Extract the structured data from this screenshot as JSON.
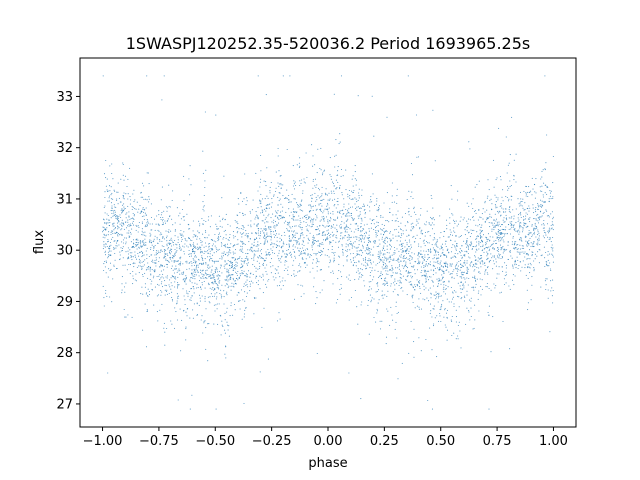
{
  "chart_data": {
    "type": "scatter",
    "title": "1SWASPJ120252.35-520036.2 Period 1693965.25s",
    "xlabel": "phase",
    "ylabel": "flux",
    "xlim": [
      -1.1,
      1.1
    ],
    "ylim": [
      26.55,
      33.75
    ],
    "grid": false,
    "point_color": "#1f77b4",
    "x_ticks": [
      -1.0,
      -0.75,
      -0.5,
      -0.25,
      0.0,
      0.25,
      0.5,
      0.75,
      1.0
    ],
    "x_tick_labels": [
      "−1.00",
      "−0.75",
      "−0.50",
      "−0.25",
      "0.00",
      "0.25",
      "0.50",
      "0.75",
      "1.00"
    ],
    "y_ticks": [
      27,
      28,
      29,
      30,
      31,
      32,
      33
    ],
    "y_tick_labels": [
      "27",
      "28",
      "29",
      "30",
      "31",
      "32",
      "33"
    ],
    "series": [
      {
        "x_range": [
          -1.0,
          1.0
        ],
        "mean_flux_profile": {
          "phase": [
            -1.0,
            -0.95,
            -0.85,
            -0.75,
            -0.6,
            -0.5,
            -0.4,
            -0.3,
            -0.2,
            -0.1,
            0.0,
            0.05,
            0.15,
            0.25,
            0.4,
            0.5,
            0.6,
            0.7,
            0.8,
            0.9,
            0.95,
            1.0
          ],
          "flux": [
            30.1,
            30.6,
            30.2,
            29.9,
            29.8,
            29.6,
            29.7,
            30.2,
            30.4,
            30.3,
            30.5,
            30.6,
            30.2,
            29.9,
            29.8,
            29.6,
            29.7,
            30.2,
            30.4,
            30.3,
            30.6,
            30.1
          ]
        },
        "flux_range": [
          26.9,
          33.4
        ],
        "typical_scatter": 0.5
      }
    ]
  }
}
